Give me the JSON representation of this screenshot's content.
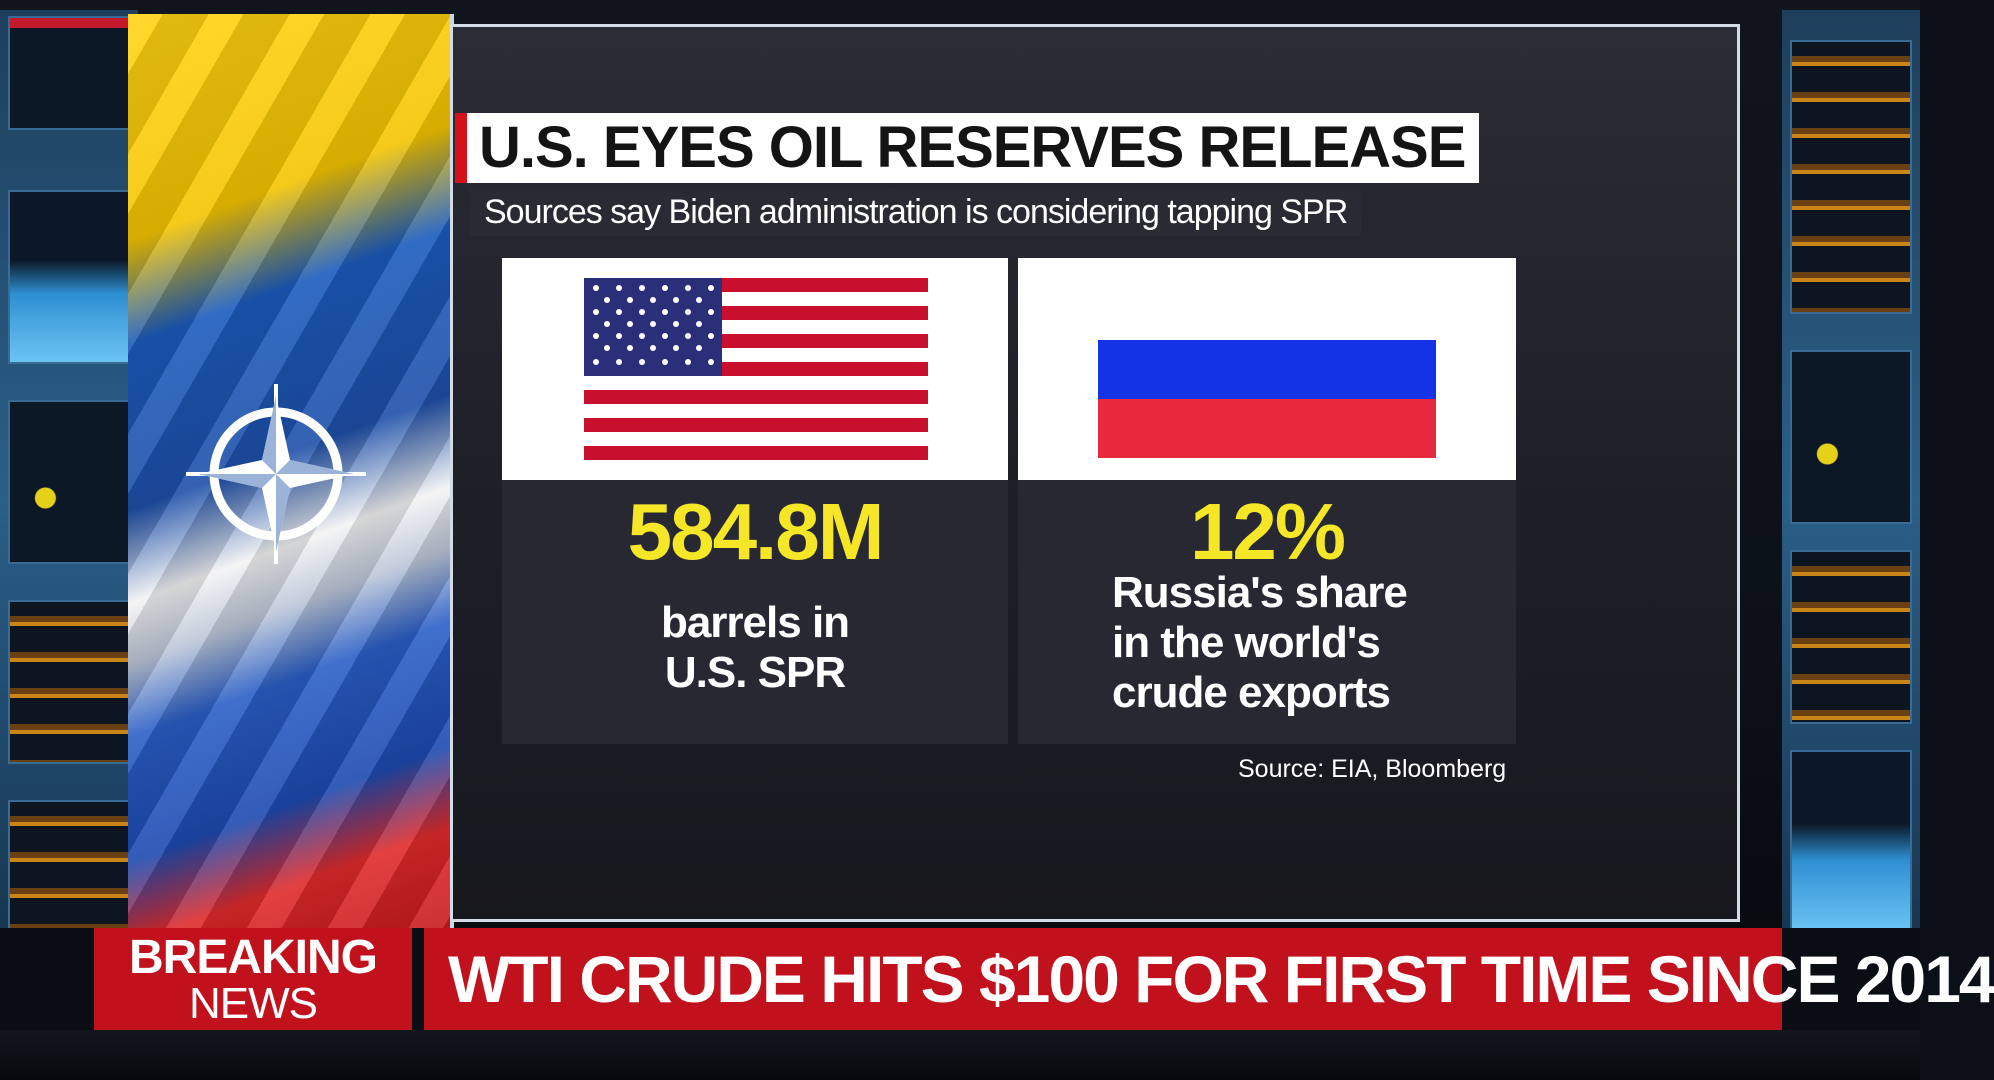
{
  "graphic": {
    "headline": "U.S. EYES OIL RESERVES RELEASE",
    "subhead": "Sources say Biden administration is considering tapping SPR",
    "us_card": {
      "stat": "584.8M",
      "caption_lines": [
        "barrels in",
        "U.S. SPR"
      ]
    },
    "russia_card": {
      "stat": "12%",
      "caption_lines": [
        "Russia's share",
        "in the world's",
        "crude exports"
      ]
    },
    "source": "Source: EIA, Bloomberg"
  },
  "lower_third": {
    "tag_line1": "BREAKING",
    "tag_line2": "NEWS",
    "ticker": "WTI CRUDE HITS $100 FOR FIRST TIME SINCE 2014"
  },
  "colors": {
    "accent_red": "#c0111c",
    "stat_yellow": "#f5e628",
    "board_bg": "#282833"
  }
}
